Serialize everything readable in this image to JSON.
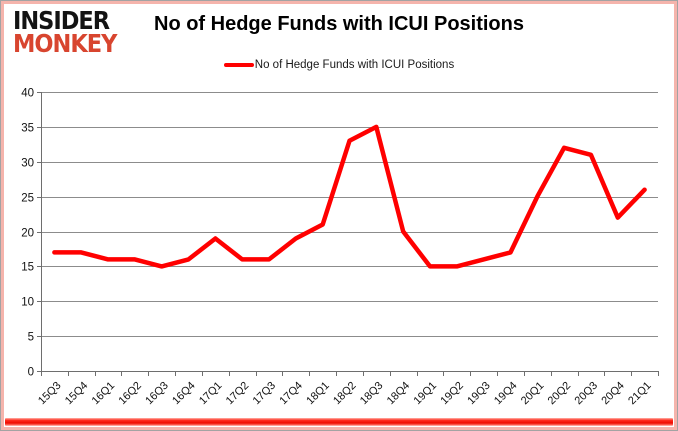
{
  "header": {
    "logo_line1": "INSIDER",
    "logo_line2": "MONKEY",
    "logo_color_line1": "#131313",
    "logo_color_line2": "#d8452f",
    "title": "No of Hedge Funds with ICUI Positions"
  },
  "legend": {
    "label": "No of Hedge Funds with ICUI Positions",
    "line_color": "#ff0000"
  },
  "chart_data": {
    "type": "line",
    "title": "No of Hedge Funds with ICUI Positions",
    "categories": [
      "15Q3",
      "15Q4",
      "16Q1",
      "16Q2",
      "16Q3",
      "16Q4",
      "17Q1",
      "17Q2",
      "17Q3",
      "17Q4",
      "18Q1",
      "18Q2",
      "18Q3",
      "18Q4",
      "19Q1",
      "19Q2",
      "19Q3",
      "19Q4",
      "20Q1",
      "20Q2",
      "20Q3",
      "20Q4",
      "21Q1"
    ],
    "series": [
      {
        "name": "No of Hedge Funds with ICUI Positions",
        "color": "#ff0000",
        "values": [
          17,
          17,
          16,
          16,
          15,
          16,
          19,
          16,
          16,
          19,
          21,
          33,
          35,
          20,
          15,
          15,
          16,
          17,
          25,
          32,
          31,
          22,
          26
        ]
      }
    ],
    "xlabel": "",
    "ylabel": "",
    "ylim": [
      0,
      40
    ],
    "ytick_step": 5,
    "grid": true,
    "gridline_color": "#8c8c8c",
    "axis_color": "#6e6e6e",
    "legend_position": "top-center"
  },
  "footer": {
    "accent_bar_color": "#ee0c00"
  }
}
